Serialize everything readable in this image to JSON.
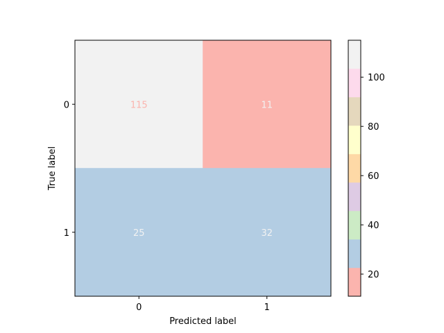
{
  "chart_data": {
    "type": "heatmap",
    "title": "",
    "xlabel": "Predicted label",
    "ylabel": "True label",
    "x_categories": [
      "0",
      "1"
    ],
    "y_categories": [
      "0",
      "1"
    ],
    "values": [
      [
        115,
        11
      ],
      [
        25,
        32
      ]
    ],
    "value_range": [
      11,
      115
    ],
    "colormap": "Pastel1",
    "colorbar": {
      "ticks": [
        20,
        40,
        60,
        80,
        100
      ],
      "colors": [
        "#fbb4ae",
        "#b3cde3",
        "#ccebc5",
        "#decbe4",
        "#fed9a6",
        "#ffffcc",
        "#e5d8bd",
        "#fddaec",
        "#f2f2f2"
      ]
    },
    "cell_text_colors": [
      [
        "#fbb4ae",
        "#f2f2f2"
      ],
      [
        "#f2f2f2",
        "#f2f2f2"
      ]
    ],
    "grid": false
  }
}
